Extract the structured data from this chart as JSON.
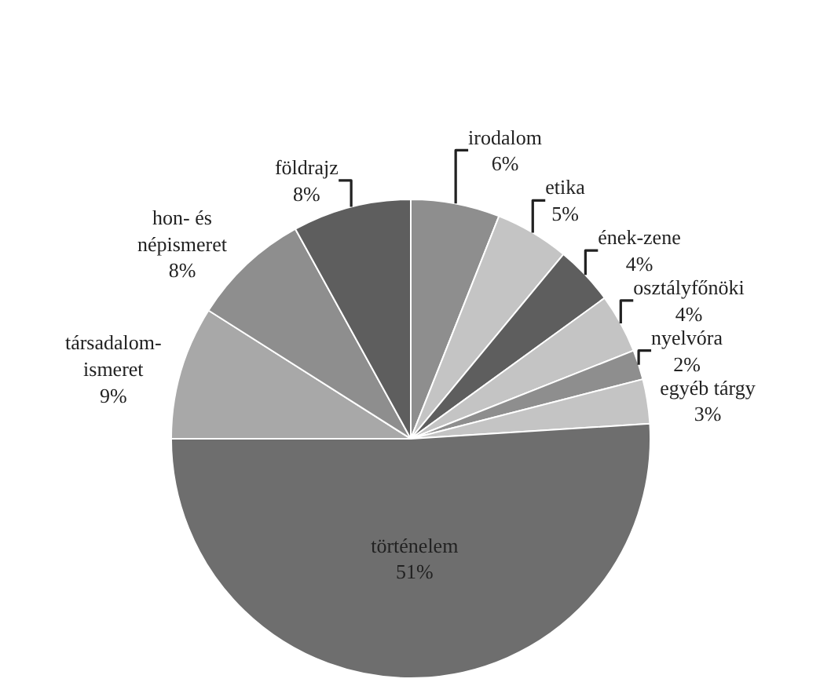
{
  "chart_data": {
    "type": "pie",
    "categories": [
      "irodalom",
      "etika",
      "ének-zene",
      "osztályfőnöki",
      "nyelvóra",
      "egyéb tárgy",
      "történelem",
      "társadalom-\nismeret",
      "hon- és\nnépismeret",
      "földrajz"
    ],
    "values": [
      6,
      5,
      4,
      4,
      2,
      3,
      51,
      9,
      8,
      8
    ],
    "value_labels": [
      "6%",
      "5%",
      "4%",
      "4%",
      "2%",
      "3%",
      "51%",
      "9%",
      "8%",
      "8%"
    ],
    "colors": [
      "#8e8e8e",
      "#c4c4c4",
      "#5e5e5e",
      "#c4c4c4",
      "#8e8e8e",
      "#c4c4c4",
      "#6e6e6e",
      "#a8a8a8",
      "#8e8e8e",
      "#5e5e5e"
    ]
  }
}
